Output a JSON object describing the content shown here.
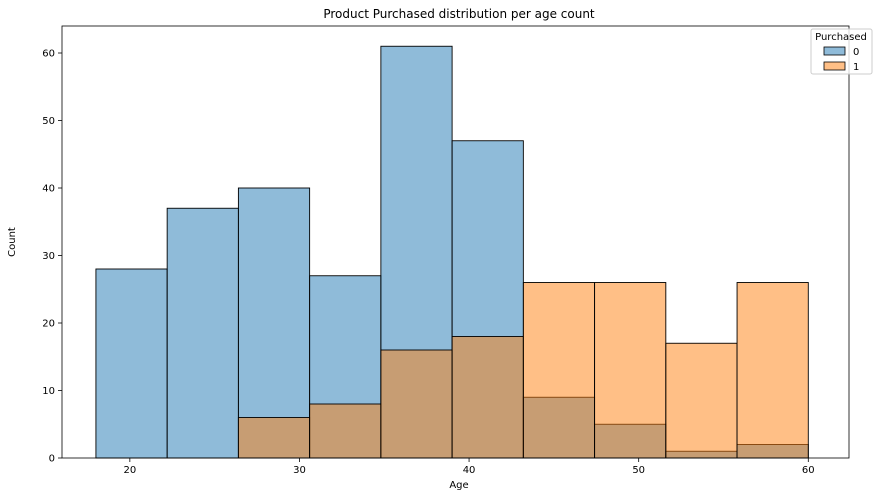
{
  "chart_data": {
    "type": "bar",
    "title": "Product Purchased distribution per age count",
    "xlabel": "Age",
    "ylabel": "Count",
    "xlim": [
      16,
      62.4
    ],
    "ylim": [
      0,
      64
    ],
    "xticks": [
      20,
      30,
      40,
      50,
      60
    ],
    "yticks": [
      0,
      10,
      20,
      30,
      40,
      50,
      60
    ],
    "bin_edges": [
      18,
      22.2,
      26.4,
      30.6,
      34.8,
      39,
      43.2,
      47.4,
      51.6,
      55.8,
      60
    ],
    "series": [
      {
        "name": "0",
        "color": "#1f77b4",
        "values": [
          28,
          37,
          40,
          27,
          61,
          47,
          9,
          5,
          1,
          2
        ]
      },
      {
        "name": "1",
        "color": "#ff7f0e",
        "values": [
          0,
          0,
          6,
          8,
          16,
          18,
          26,
          26,
          17,
          26
        ]
      }
    ],
    "legend": {
      "title": "Purchased",
      "placement": "top-right"
    },
    "grid": false
  }
}
